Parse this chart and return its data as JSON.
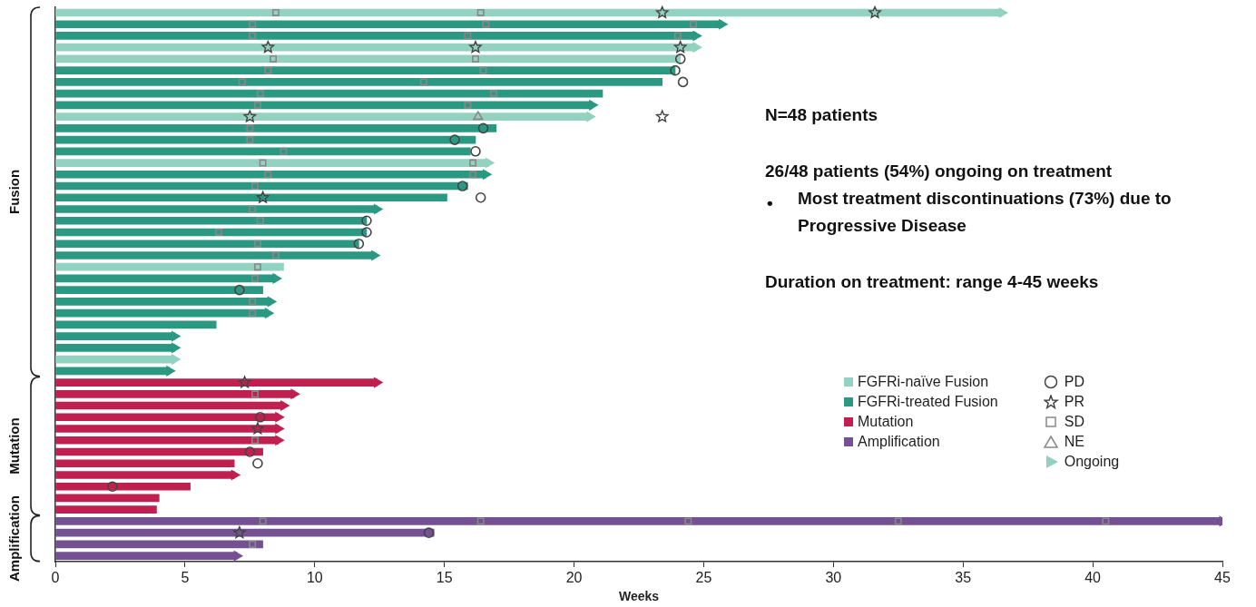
{
  "chart_data": {
    "type": "bar",
    "orientation": "horizontal",
    "xlabel": "Weeks",
    "xlim": [
      0,
      45
    ],
    "xticks": [
      0,
      5,
      10,
      15,
      20,
      25,
      30,
      35,
      40,
      45
    ],
    "legend": "bottom right",
    "categories": [
      null,
      null,
      null,
      null,
      null,
      null,
      null,
      null,
      null,
      null,
      null,
      null,
      null,
      null,
      null,
      null,
      null,
      null,
      null,
      null,
      null,
      null,
      null,
      null,
      null,
      null,
      null,
      null,
      null,
      null,
      null,
      null,
      null,
      null,
      null,
      null,
      null,
      null,
      null,
      null,
      null,
      null,
      null,
      null,
      null,
      null,
      null,
      null
    ],
    "annotations": [
      "Fusion",
      "Mutation",
      "Amplification",
      "N=48 patients",
      "26/48 patients (54%) ongoing on treatment",
      "•",
      "Most treatment discontinuations (73%) due to Progressive Disease",
      "Duration on treatment: range 4-45 weeks"
    ],
    "series": [
      {
        "name": "FGFRi-naïve Fusion",
        "color": "#93d1c0",
        "values": [
          36.5,
          null,
          null,
          24.7,
          24.1,
          null,
          null,
          null,
          null,
          20.6,
          null,
          null,
          null,
          16.7,
          null,
          null,
          null,
          null,
          null,
          null,
          null,
          null,
          8.8,
          null,
          null,
          null,
          null,
          null,
          null,
          null,
          4.6,
          null,
          null,
          null,
          null,
          null,
          null,
          null,
          null,
          null,
          null,
          null,
          null,
          null,
          null,
          null,
          null,
          null
        ]
      },
      {
        "name": "FGFRi-treated Fusion",
        "color": "#2b9882",
        "values": [
          null,
          25.7,
          24.7,
          null,
          null,
          23.9,
          23.4,
          21.1,
          20.7,
          null,
          17.0,
          16.2,
          16.0,
          null,
          16.6,
          15.9,
          15.1,
          12.4,
          12.0,
          12.0,
          11.7,
          12.3,
          null,
          8.5,
          8.0,
          8.3,
          8.2,
          6.2,
          4.6,
          4.6,
          null,
          4.4,
          null,
          null,
          null,
          null,
          null,
          null,
          null,
          null,
          null,
          null,
          null,
          null,
          null,
          null,
          null,
          null
        ]
      },
      {
        "name": "Mutation",
        "color": "#c0204f",
        "values": [
          null,
          null,
          null,
          null,
          null,
          null,
          null,
          null,
          null,
          null,
          null,
          null,
          null,
          null,
          null,
          null,
          null,
          null,
          null,
          null,
          null,
          null,
          null,
          null,
          null,
          null,
          null,
          null,
          null,
          null,
          null,
          null,
          12.4,
          9.2,
          8.8,
          8.6,
          8.6,
          8.6,
          8.0,
          6.9,
          6.9,
          5.2,
          4.0,
          3.9,
          null,
          null,
          null,
          null
        ]
      },
      {
        "name": "Amplification",
        "color": "#735192",
        "values": [
          null,
          null,
          null,
          null,
          null,
          null,
          null,
          null,
          null,
          null,
          null,
          null,
          null,
          null,
          null,
          null,
          null,
          null,
          null,
          null,
          null,
          null,
          null,
          null,
          null,
          null,
          null,
          null,
          null,
          null,
          null,
          null,
          null,
          null,
          null,
          null,
          null,
          null,
          null,
          null,
          null,
          null,
          null,
          null,
          45,
          14.6,
          8.0,
          7.0
        ]
      },
      {
        "name": "PD",
        "type": "scatter",
        "marker": "circle",
        "color": "#444444",
        "values": [
          null,
          null,
          null,
          null,
          24.1,
          23.9,
          24.2,
          null,
          null,
          null,
          16.5,
          15.4,
          16.2,
          null,
          null,
          15.7,
          16.4,
          null,
          12.0,
          12.0,
          11.7,
          null,
          null,
          null,
          7.1,
          null,
          null,
          null,
          null,
          null,
          null,
          null,
          null,
          null,
          null,
          7.9,
          null,
          null,
          7.5,
          7.8,
          null,
          2.2,
          null,
          null,
          null,
          14.4,
          null,
          null
        ]
      },
      {
        "name": "PR",
        "type": "scatter",
        "marker": "star",
        "color": "#444444",
        "values": [
          23.4,
          null,
          null,
          8.2,
          null,
          null,
          null,
          null,
          null,
          7.5,
          null,
          null,
          null,
          null,
          null,
          null,
          8.0,
          null,
          null,
          null,
          null,
          null,
          null,
          null,
          null,
          null,
          null,
          null,
          null,
          null,
          null,
          null,
          7.3,
          null,
          null,
          null,
          7.8,
          null,
          null,
          null,
          null,
          null,
          null,
          null,
          null,
          7.1,
          null,
          null
        ]
      },
      {
        "name": "SD",
        "type": "scatter",
        "marker": "square",
        "color": "#888888",
        "values": [
          8.5,
          7.6,
          7.6,
          null,
          8.4,
          8.2,
          7.2,
          7.9,
          7.8,
          null,
          7.5,
          7.5,
          8.8,
          8.0,
          8.2,
          7.7,
          null,
          7.6,
          7.9,
          6.3,
          7.8,
          8.5,
          7.8,
          7.7,
          null,
          7.6,
          7.6,
          null,
          null,
          null,
          null,
          null,
          null,
          7.7,
          null,
          null,
          null,
          7.7,
          null,
          null,
          null,
          null,
          null,
          null,
          8.0,
          null,
          7.6,
          null
        ]
      },
      {
        "name": "NE",
        "type": "scatter",
        "marker": "triangle",
        "color": "#888888",
        "values": [
          null,
          null,
          null,
          null,
          null,
          null,
          null,
          null,
          null,
          16.3,
          null,
          null,
          null,
          null,
          null,
          null,
          null,
          null,
          null,
          null,
          null,
          null,
          null,
          null,
          null,
          null,
          null,
          null,
          null,
          null,
          null,
          null,
          null,
          null,
          null,
          null,
          null,
          null,
          null,
          null,
          null,
          null,
          null,
          null,
          null,
          null,
          null,
          null
        ]
      },
      {
        "name": "Ongoing",
        "type": "scatter",
        "marker": "triangle",
        "colors": [
          "#93d1c0",
          "#2b9882",
          "#2b9882",
          "#93d1c0",
          null,
          null,
          null,
          null,
          "#2b9882",
          "#93d1c0",
          null,
          null,
          null,
          "#93d1c0",
          "#2b9882",
          null,
          null,
          "#2b9882",
          null,
          null,
          null,
          "#2b9882",
          null,
          "#2b9882",
          null,
          "#2b9882",
          "#2b9882",
          null,
          "#2b9882",
          "#2b9882",
          "#93d1c0",
          "#2b9882",
          "#c0204f",
          "#c0204f",
          "#c0204f",
          "#c0204f",
          "#c0204f",
          "#c0204f",
          null,
          null,
          "#c0204f",
          null,
          null,
          null,
          "#735192",
          null,
          null,
          "#735192"
        ],
        "values": [
          36.5,
          25.7,
          24.7,
          24.7,
          null,
          null,
          null,
          null,
          20.7,
          20.6,
          null,
          null,
          null,
          16.7,
          16.6,
          null,
          null,
          12.4,
          null,
          null,
          null,
          12.3,
          null,
          8.5,
          null,
          8.3,
          8.2,
          null,
          4.6,
          4.6,
          4.6,
          4.4,
          12.4,
          9.2,
          8.8,
          8.6,
          8.6,
          8.6,
          null,
          null,
          6.9,
          null,
          null,
          null,
          45,
          null,
          null,
          7.0
        ]
      },
      {
        "type": "scatter",
        "marker": "star",
        "color": "#444444",
        "values": [
          31.6,
          null,
          null,
          16.2,
          null,
          null,
          null,
          null,
          null,
          23.4,
          null,
          null,
          null,
          null,
          null,
          null,
          null,
          null,
          null,
          null,
          null,
          null,
          null,
          null,
          null,
          null,
          null,
          null,
          null,
          null,
          null,
          null,
          null,
          null,
          null,
          null,
          null,
          null,
          null,
          null,
          null,
          null,
          null,
          null,
          null,
          null,
          null,
          null
        ]
      },
      {
        "type": "scatter",
        "marker": "star",
        "color": "#444444",
        "values": [
          null,
          null,
          null,
          24.1,
          null,
          null,
          null,
          null,
          null,
          null,
          null,
          null,
          null,
          null,
          null,
          null,
          null,
          null,
          null,
          null,
          null,
          null,
          null,
          null,
          null,
          null,
          null,
          null,
          null,
          null,
          null,
          null,
          null,
          null,
          null,
          null,
          null,
          null,
          null,
          null,
          null,
          null,
          null,
          null,
          null,
          null,
          null,
          null
        ]
      },
      {
        "type": "scatter",
        "marker": "square",
        "color": "#888888",
        "values": [
          16.4,
          16.6,
          15.9,
          null,
          16.2,
          16.5,
          14.2,
          16.9,
          15.9,
          null,
          null,
          null,
          null,
          16.1,
          16.1,
          null,
          null,
          null,
          null,
          null,
          null,
          null,
          null,
          null,
          null,
          null,
          null,
          null,
          null,
          null,
          null,
          null,
          null,
          null,
          null,
          null,
          null,
          null,
          null,
          null,
          null,
          null,
          null,
          null,
          16.4,
          null,
          null,
          null
        ]
      },
      {
        "type": "scatter",
        "marker": "square",
        "color": "#888888",
        "values": [
          null,
          24.6,
          24.0,
          null,
          null,
          null,
          null,
          null,
          null,
          null,
          null,
          null,
          null,
          null,
          null,
          null,
          null,
          null,
          null,
          null,
          null,
          null,
          null,
          null,
          null,
          null,
          null,
          null,
          null,
          null,
          null,
          null,
          null,
          null,
          null,
          null,
          null,
          null,
          null,
          null,
          null,
          null,
          null,
          null,
          24.4,
          null,
          null,
          null
        ]
      },
      {
        "type": "scatter",
        "marker": "square",
        "color": "#888888",
        "values": [
          null,
          null,
          null,
          null,
          null,
          null,
          null,
          null,
          null,
          null,
          null,
          null,
          null,
          null,
          null,
          null,
          null,
          null,
          null,
          null,
          null,
          null,
          null,
          null,
          null,
          null,
          null,
          null,
          null,
          null,
          null,
          null,
          null,
          null,
          null,
          null,
          null,
          null,
          null,
          null,
          null,
          null,
          null,
          null,
          32.5,
          null,
          null,
          null
        ]
      },
      {
        "type": "scatter",
        "marker": "square",
        "color": "#888888",
        "values": [
          null,
          null,
          null,
          null,
          null,
          null,
          null,
          null,
          null,
          null,
          null,
          null,
          null,
          null,
          null,
          null,
          null,
          null,
          null,
          null,
          null,
          null,
          null,
          null,
          null,
          null,
          null,
          null,
          null,
          null,
          null,
          null,
          null,
          null,
          null,
          null,
          null,
          null,
          null,
          null,
          null,
          null,
          null,
          null,
          40.5,
          null,
          null,
          null
        ]
      }
    ]
  }
}
